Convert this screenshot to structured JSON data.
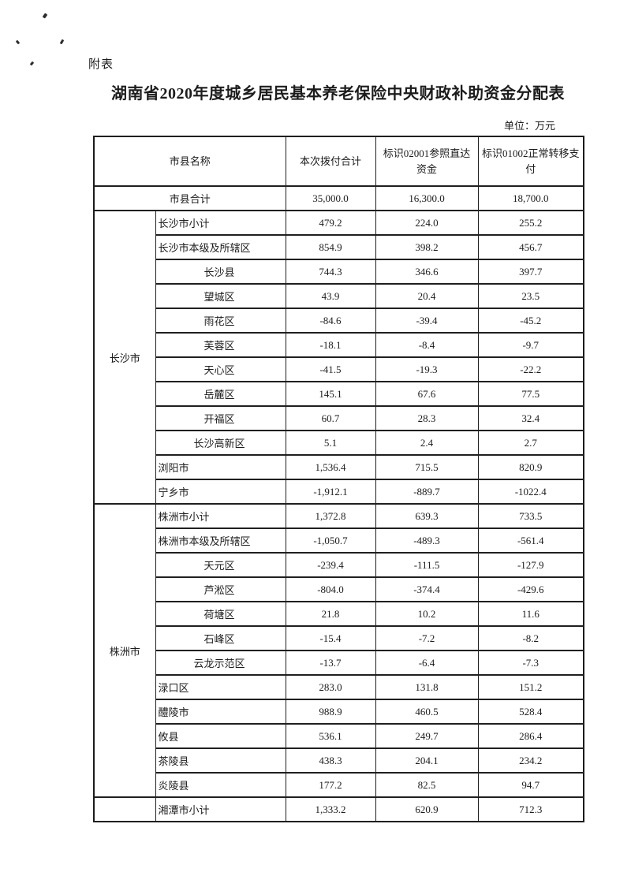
{
  "page": {
    "annotation": "附表",
    "title": "湖南省2020年度城乡居民基本养老保险中央财政补助资金分配表",
    "unit_label": "单位：万元"
  },
  "table": {
    "columns": {
      "name": "市县名称",
      "col1": "本次拨付合计",
      "col2": "标识02001参照直达资金",
      "col3": "标识01002正常转移支付"
    },
    "total_row": {
      "name": "市县合计",
      "values": [
        "35,000.0",
        "16,300.0",
        "18,700.0"
      ]
    },
    "groups": [
      {
        "name": "长沙市",
        "rows": [
          {
            "name": "长沙市小计",
            "indent": false,
            "values": [
              "479.2",
              "224.0",
              "255.2"
            ]
          },
          {
            "name": "长沙市本级及所辖区",
            "indent": false,
            "values": [
              "854.9",
              "398.2",
              "456.7"
            ]
          },
          {
            "name": "长沙县",
            "indent": true,
            "values": [
              "744.3",
              "346.6",
              "397.7"
            ]
          },
          {
            "name": "望城区",
            "indent": true,
            "values": [
              "43.9",
              "20.4",
              "23.5"
            ]
          },
          {
            "name": "雨花区",
            "indent": true,
            "values": [
              "-84.6",
              "-39.4",
              "-45.2"
            ]
          },
          {
            "name": "芙蓉区",
            "indent": true,
            "values": [
              "-18.1",
              "-8.4",
              "-9.7"
            ]
          },
          {
            "name": "天心区",
            "indent": true,
            "values": [
              "-41.5",
              "-19.3",
              "-22.2"
            ]
          },
          {
            "name": "岳麓区",
            "indent": true,
            "values": [
              "145.1",
              "67.6",
              "77.5"
            ]
          },
          {
            "name": "开福区",
            "indent": true,
            "values": [
              "60.7",
              "28.3",
              "32.4"
            ]
          },
          {
            "name": "长沙高新区",
            "indent": true,
            "values": [
              "5.1",
              "2.4",
              "2.7"
            ]
          },
          {
            "name": "浏阳市",
            "indent": false,
            "values": [
              "1,536.4",
              "715.5",
              "820.9"
            ]
          },
          {
            "name": "宁乡市",
            "indent": false,
            "values": [
              "-1,912.1",
              "-889.7",
              "-1022.4"
            ]
          }
        ]
      },
      {
        "name": "株洲市",
        "rows": [
          {
            "name": "株洲市小计",
            "indent": false,
            "values": [
              "1,372.8",
              "639.3",
              "733.5"
            ]
          },
          {
            "name": "株洲市本级及所辖区",
            "indent": false,
            "values": [
              "-1,050.7",
              "-489.3",
              "-561.4"
            ]
          },
          {
            "name": "天元区",
            "indent": true,
            "values": [
              "-239.4",
              "-111.5",
              "-127.9"
            ]
          },
          {
            "name": "芦淞区",
            "indent": true,
            "values": [
              "-804.0",
              "-374.4",
              "-429.6"
            ]
          },
          {
            "name": "荷塘区",
            "indent": true,
            "values": [
              "21.8",
              "10.2",
              "11.6"
            ]
          },
          {
            "name": "石峰区",
            "indent": true,
            "values": [
              "-15.4",
              "-7.2",
              "-8.2"
            ]
          },
          {
            "name": "云龙示范区",
            "indent": true,
            "values": [
              "-13.7",
              "-6.4",
              "-7.3"
            ]
          },
          {
            "name": "渌口区",
            "indent": false,
            "values": [
              "283.0",
              "131.8",
              "151.2"
            ]
          },
          {
            "name": "醴陵市",
            "indent": false,
            "values": [
              "988.9",
              "460.5",
              "528.4"
            ]
          },
          {
            "name": "攸县",
            "indent": false,
            "values": [
              "536.1",
              "249.7",
              "286.4"
            ]
          },
          {
            "name": "茶陵县",
            "indent": false,
            "values": [
              "438.3",
              "204.1",
              "234.2"
            ]
          },
          {
            "name": "炎陵县",
            "indent": false,
            "values": [
              "177.2",
              "82.5",
              "94.7"
            ]
          }
        ]
      },
      {
        "name": "",
        "rows": [
          {
            "name": "湘潭市小计",
            "indent": false,
            "values": [
              "1,333.2",
              "620.9",
              "712.3"
            ]
          }
        ]
      }
    ]
  }
}
